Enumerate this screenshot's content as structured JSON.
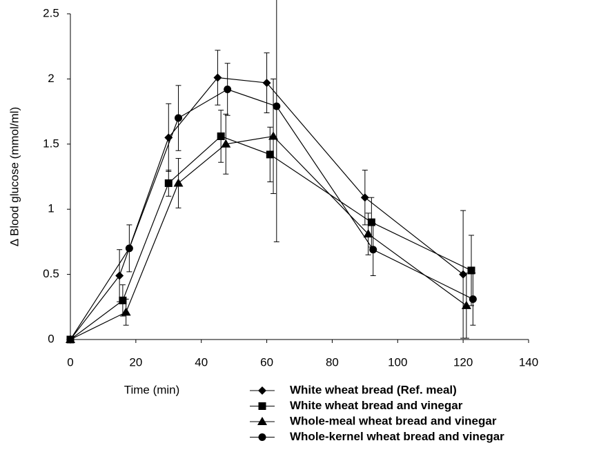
{
  "chart_data": {
    "type": "line",
    "x_label": "Time (min)",
    "y_label": "Δ Blood glucose (mmol/ml)",
    "xlim": [
      0,
      140
    ],
    "xticks": [
      0,
      20,
      40,
      60,
      80,
      100,
      120,
      140
    ],
    "ylim": [
      0,
      2.5
    ],
    "yticks": [
      0,
      0.5,
      1,
      1.5,
      2,
      2.5
    ],
    "series": [
      {
        "name": "White wheat bread (Ref. meal)",
        "color": "#000000",
        "marker": "diamond",
        "x": [
          0,
          15,
          30,
          45,
          60,
          90,
          120
        ],
        "values": [
          0,
          0.49,
          1.55,
          2.01,
          1.97,
          1.09,
          0.5
        ],
        "errors": [
          0,
          0.2,
          0.26,
          0.21,
          0.23,
          0.21,
          0.49
        ]
      },
      {
        "name": "White wheat bread and vinegar",
        "color": "#000000",
        "marker": "square",
        "x": [
          0,
          16,
          30,
          46,
          61,
          92,
          122.5
        ],
        "values": [
          0,
          0.3,
          1.2,
          1.56,
          1.42,
          0.9,
          0.53
        ],
        "errors": [
          0,
          0.12,
          0.1,
          0.2,
          0.21,
          0.19,
          0.27
        ]
      },
      {
        "name": "Whole-meal wheat bread and vinegar",
        "color": "#000000",
        "marker": "triangle",
        "x": [
          0,
          17,
          33,
          47.5,
          62,
          91,
          121
        ],
        "values": [
          0,
          0.21,
          1.2,
          1.5,
          1.56,
          0.81,
          0.26
        ],
        "errors": [
          0,
          0.1,
          0.19,
          0.23,
          0.44,
          0.16,
          0.25
        ]
      },
      {
        "name": "Whole-kernel wheat bread and vinegar",
        "color": "#000000",
        "marker": "circle",
        "x": [
          0,
          18,
          33,
          48,
          63,
          92.5,
          123
        ],
        "values": [
          0,
          0.7,
          1.7,
          1.92,
          1.79,
          0.69,
          0.31
        ],
        "errors": [
          0,
          0.18,
          0.25,
          0.2,
          1.04,
          0.2,
          0.2
        ]
      }
    ]
  }
}
